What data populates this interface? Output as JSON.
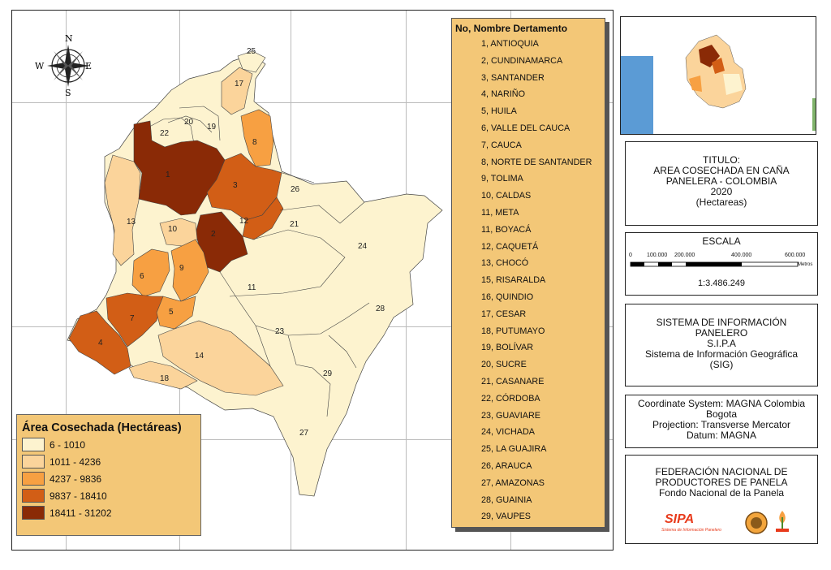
{
  "compass": {
    "n": "N",
    "s": "S",
    "e": "E",
    "w": "W"
  },
  "legend": {
    "title": "Área Cosechada (Hectáreas)",
    "classes": [
      {
        "label": "6 - 1010",
        "color": "#fdf3cf"
      },
      {
        "label": "1011 - 4236",
        "color": "#fbd49b"
      },
      {
        "label": "4237 - 9836",
        "color": "#f7a042"
      },
      {
        "label": "9837 - 18410",
        "color": "#d25e16"
      },
      {
        "label": "18411 - 31202",
        "color": "#8a2a06"
      }
    ]
  },
  "dept_list": {
    "title": "No, Nombre Dertamento",
    "items": [
      "1, ANTIOQUIA",
      "2, CUNDINAMARCA",
      "3, SANTANDER",
      "4, NARIÑO",
      "5, HUILA",
      "6, VALLE DEL CAUCA",
      "7, CAUCA",
      "8, NORTE DE SANTANDER",
      "9, TOLIMA",
      "10, CALDAS",
      "11, META",
      "11, BOYACÁ",
      "12, CAQUETÁ",
      "13, CHOCÓ",
      "15, RISARALDA",
      "16, QUINDIO",
      "17, CESAR",
      "18, PUTUMAYO",
      "19, BOLÍVAR",
      "20, SUCRE",
      "21, CASANARE",
      "22, CÓRDOBA",
      "23, GUAVIARE",
      "24, VICHADA",
      "25, LA GUAJIRA",
      "26, ARAUCA",
      "27, AMAZONAS",
      "28, GUAINIA",
      "29, VAUPES"
    ]
  },
  "map_labels": [
    "1",
    "2",
    "3",
    "4",
    "5",
    "6",
    "7",
    "8",
    "9",
    "10",
    "11",
    "12",
    "13",
    "14",
    "17",
    "18",
    "19",
    "20",
    "21",
    "22",
    "23",
    "24",
    "25",
    "26",
    "27",
    "28",
    "29"
  ],
  "title_panel": [
    "TITULO:",
    "AREA COSECHADA EN CAÑA",
    "PANELERA - COLOMBIA",
    "2020",
    "(Hectareas)"
  ],
  "scale": {
    "title": "ESCALA",
    "ticks": [
      "0",
      "100.000",
      "200.000",
      "400.000",
      "600.000"
    ],
    "unit": "Metros",
    "ratio": "1:3.486.249"
  },
  "sipa_panel": [
    "SISTEMA DE INFORMACIÓN",
    "PANELERO",
    "S.I.P.A",
    "Sistema de Información Geográfica",
    "(SIG)"
  ],
  "coord_panel": [
    "Coordinate System: MAGNA Colombia",
    "Bogota",
    "Projection: Transverse Mercator",
    "Datum: MAGNA"
  ],
  "fed_panel": [
    "FEDERACIÓN NACIONAL DE",
    "PRODUCTORES DE PANELA",
    "Fondo Nacional de la Panela"
  ],
  "logo": {
    "brand": "SIPA",
    "tagline": "Sistema de Información Panelero"
  }
}
